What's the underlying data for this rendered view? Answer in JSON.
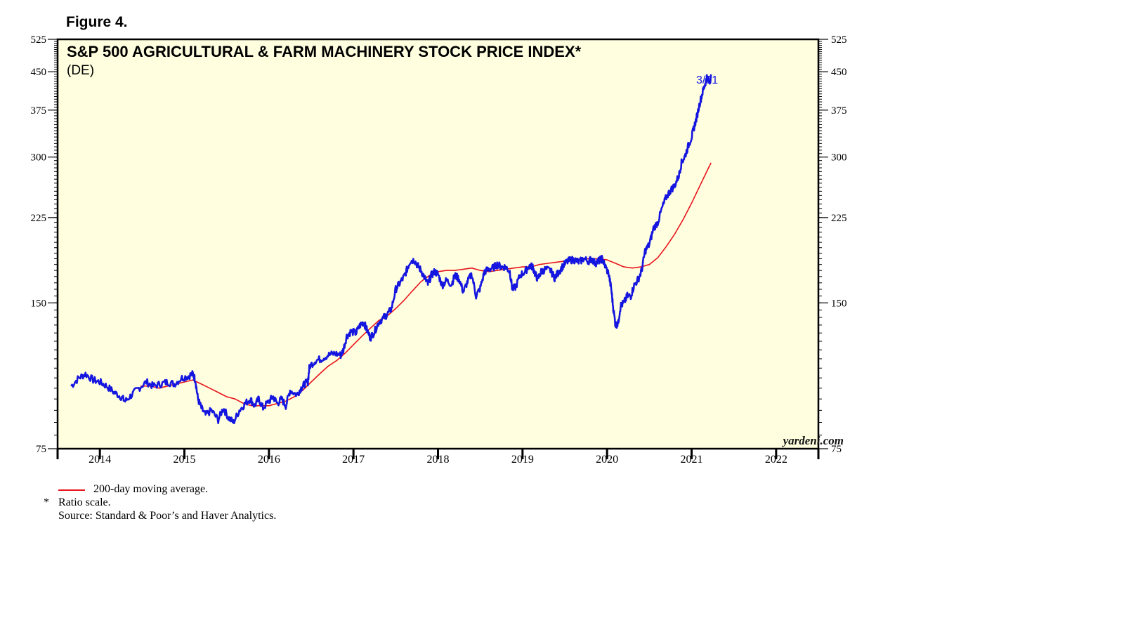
{
  "figure_label": "Figure 4.",
  "footnotes": {
    "legend_ma": "200-day moving average.",
    "asterisk": "*",
    "ratio_note": "Ratio scale.",
    "source": "Source: Standard & Poor’s and Haver Analytics."
  },
  "colors": {
    "price": "#1515e0",
    "moving_average": "#e8131c",
    "plot_background": "#ffffe0"
  },
  "chart_data": {
    "type": "line",
    "title": "S&P 500 AGRICULTURAL & FARM MACHINERY STOCK PRICE INDEX*",
    "subtitle": "(DE)",
    "y_scale": "log",
    "ylim": [
      75,
      525
    ],
    "y_ticks": [
      75,
      150,
      225,
      300,
      375,
      450,
      525
    ],
    "xlim": [
      2013.5,
      2022.5
    ],
    "x_tick_labels": [
      "2014",
      "2015",
      "2016",
      "2017",
      "2018",
      "2019",
      "2020",
      "2021",
      "2022"
    ],
    "grid": false,
    "end_label": "3/31",
    "watermark": "yardeni.com",
    "series": [
      {
        "name": "S&P 500 Agricultural & Farm Machinery (DE)",
        "color": "#1515e0",
        "points": [
          [
            2013.66,
            101
          ],
          [
            2013.75,
            105
          ],
          [
            2013.83,
            107
          ],
          [
            2013.92,
            104
          ],
          [
            2014.0,
            103
          ],
          [
            2014.08,
            101
          ],
          [
            2014.17,
            98
          ],
          [
            2014.25,
            96
          ],
          [
            2014.3,
            94
          ],
          [
            2014.38,
            97
          ],
          [
            2014.46,
            100
          ],
          [
            2014.55,
            103
          ],
          [
            2014.63,
            101
          ],
          [
            2014.72,
            102
          ],
          [
            2014.8,
            103
          ],
          [
            2014.88,
            102
          ],
          [
            2014.97,
            105
          ],
          [
            2015.05,
            106
          ],
          [
            2015.1,
            107
          ],
          [
            2015.13,
            104
          ],
          [
            2015.16,
            95
          ],
          [
            2015.2,
            91
          ],
          [
            2015.25,
            88
          ],
          [
            2015.32,
            90
          ],
          [
            2015.4,
            86
          ],
          [
            2015.46,
            91
          ],
          [
            2015.52,
            87
          ],
          [
            2015.58,
            85
          ],
          [
            2015.65,
            90
          ],
          [
            2015.72,
            93
          ],
          [
            2015.78,
            95
          ],
          [
            2015.83,
            92
          ],
          [
            2015.88,
            95
          ],
          [
            2015.93,
            91
          ],
          [
            2016.0,
            94
          ],
          [
            2016.05,
            96
          ],
          [
            2016.1,
            93
          ],
          [
            2016.15,
            95
          ],
          [
            2016.2,
            92
          ],
          [
            2016.25,
            99
          ],
          [
            2016.33,
            97
          ],
          [
            2016.38,
            100
          ],
          [
            2016.42,
            102
          ],
          [
            2016.46,
            103
          ],
          [
            2016.48,
            111
          ],
          [
            2016.55,
            114
          ],
          [
            2016.62,
            115
          ],
          [
            2016.7,
            117
          ],
          [
            2016.78,
            118
          ],
          [
            2016.85,
            117
          ],
          [
            2016.88,
            120
          ],
          [
            2016.92,
            128
          ],
          [
            2016.97,
            131
          ],
          [
            2017.03,
            130
          ],
          [
            2017.08,
            135
          ],
          [
            2017.12,
            137
          ],
          [
            2017.15,
            133
          ],
          [
            2017.2,
            127
          ],
          [
            2017.25,
            131
          ],
          [
            2017.3,
            137
          ],
          [
            2017.36,
            140
          ],
          [
            2017.4,
            142
          ],
          [
            2017.45,
            146
          ],
          [
            2017.5,
            160
          ],
          [
            2017.55,
            165
          ],
          [
            2017.6,
            170
          ],
          [
            2017.64,
            177
          ],
          [
            2017.67,
            183
          ],
          [
            2017.72,
            184
          ],
          [
            2017.76,
            179
          ],
          [
            2017.8,
            175
          ],
          [
            2017.85,
            168
          ],
          [
            2017.88,
            164
          ],
          [
            2017.92,
            171
          ],
          [
            2017.96,
            174
          ],
          [
            2018.0,
            172
          ],
          [
            2018.05,
            163
          ],
          [
            2018.1,
            167
          ],
          [
            2018.16,
            164
          ],
          [
            2018.2,
            171
          ],
          [
            2018.25,
            168
          ],
          [
            2018.3,
            158
          ],
          [
            2018.35,
            166
          ],
          [
            2018.4,
            172
          ],
          [
            2018.45,
            155
          ],
          [
            2018.5,
            161
          ],
          [
            2018.55,
            174
          ],
          [
            2018.6,
            176
          ],
          [
            2018.65,
            177
          ],
          [
            2018.7,
            180
          ],
          [
            2018.75,
            178
          ],
          [
            2018.8,
            178
          ],
          [
            2018.85,
            174
          ],
          [
            2018.88,
            160
          ],
          [
            2018.92,
            162
          ],
          [
            2018.97,
            171
          ],
          [
            2019.03,
            174
          ],
          [
            2019.08,
            179
          ],
          [
            2019.12,
            178
          ],
          [
            2019.15,
            172
          ],
          [
            2019.18,
            168
          ],
          [
            2019.22,
            174
          ],
          [
            2019.27,
            176
          ],
          [
            2019.33,
            175
          ],
          [
            2019.38,
            169
          ],
          [
            2019.42,
            173
          ],
          [
            2019.47,
            178
          ],
          [
            2019.52,
            182
          ],
          [
            2019.57,
            184
          ],
          [
            2019.62,
            184
          ],
          [
            2019.67,
            182
          ],
          [
            2019.72,
            185
          ],
          [
            2019.78,
            183
          ],
          [
            2019.82,
            185
          ],
          [
            2019.86,
            181
          ],
          [
            2019.9,
            183
          ],
          [
            2019.94,
            185
          ],
          [
            2019.97,
            180
          ],
          [
            2020.02,
            172
          ],
          [
            2020.05,
            160
          ],
          [
            2020.07,
            148
          ],
          [
            2020.1,
            135
          ],
          [
            2020.13,
            136
          ],
          [
            2020.16,
            148
          ],
          [
            2020.2,
            150
          ],
          [
            2020.24,
            155
          ],
          [
            2020.28,
            155
          ],
          [
            2020.32,
            163
          ],
          [
            2020.37,
            168
          ],
          [
            2020.41,
            175
          ],
          [
            2020.45,
            192
          ],
          [
            2020.5,
            198
          ],
          [
            2020.55,
            214
          ],
          [
            2020.6,
            220
          ],
          [
            2020.65,
            235
          ],
          [
            2020.7,
            248
          ],
          [
            2020.75,
            256
          ],
          [
            2020.8,
            262
          ],
          [
            2020.85,
            275
          ],
          [
            2020.88,
            292
          ],
          [
            2020.92,
            301
          ],
          [
            2020.96,
            316
          ],
          [
            2021.0,
            330
          ],
          [
            2021.03,
            346
          ],
          [
            2021.06,
            362
          ],
          [
            2021.1,
            390
          ],
          [
            2021.13,
            408
          ],
          [
            2021.16,
            425
          ],
          [
            2021.18,
            438
          ],
          [
            2021.21,
            428
          ],
          [
            2021.23,
            440
          ]
        ]
      },
      {
        "name": "200-day moving average",
        "color": "#e8131c",
        "points": [
          [
            2014.48,
            101
          ],
          [
            2014.6,
            101
          ],
          [
            2014.7,
            100
          ],
          [
            2014.8,
            101
          ],
          [
            2014.9,
            102
          ],
          [
            2015.0,
            103
          ],
          [
            2015.1,
            104
          ],
          [
            2015.2,
            102
          ],
          [
            2015.3,
            100
          ],
          [
            2015.4,
            98
          ],
          [
            2015.5,
            96
          ],
          [
            2015.6,
            95
          ],
          [
            2015.7,
            93
          ],
          [
            2015.8,
            92
          ],
          [
            2015.9,
            92
          ],
          [
            2016.0,
            92
          ],
          [
            2016.1,
            93
          ],
          [
            2016.2,
            94
          ],
          [
            2016.3,
            96
          ],
          [
            2016.4,
            99
          ],
          [
            2016.5,
            103
          ],
          [
            2016.6,
            107
          ],
          [
            2016.7,
            111
          ],
          [
            2016.8,
            114
          ],
          [
            2016.9,
            118
          ],
          [
            2017.0,
            123
          ],
          [
            2017.1,
            128
          ],
          [
            2017.2,
            133
          ],
          [
            2017.3,
            138
          ],
          [
            2017.4,
            141
          ],
          [
            2017.5,
            146
          ],
          [
            2017.6,
            152
          ],
          [
            2017.7,
            159
          ],
          [
            2017.8,
            166
          ],
          [
            2017.9,
            171
          ],
          [
            2018.0,
            174
          ],
          [
            2018.1,
            175
          ],
          [
            2018.2,
            175
          ],
          [
            2018.3,
            176
          ],
          [
            2018.4,
            177
          ],
          [
            2018.5,
            175
          ],
          [
            2018.6,
            174
          ],
          [
            2018.7,
            175
          ],
          [
            2018.8,
            176
          ],
          [
            2018.9,
            177
          ],
          [
            2019.0,
            178
          ],
          [
            2019.1,
            178
          ],
          [
            2019.2,
            180
          ],
          [
            2019.3,
            181
          ],
          [
            2019.4,
            182
          ],
          [
            2019.5,
            183
          ],
          [
            2019.6,
            184
          ],
          [
            2019.7,
            185
          ],
          [
            2019.8,
            185
          ],
          [
            2019.9,
            185
          ],
          [
            2020.0,
            184
          ],
          [
            2020.1,
            181
          ],
          [
            2020.2,
            178
          ],
          [
            2020.3,
            177
          ],
          [
            2020.4,
            178
          ],
          [
            2020.5,
            180
          ],
          [
            2020.6,
            186
          ],
          [
            2020.7,
            196
          ],
          [
            2020.8,
            208
          ],
          [
            2020.9,
            223
          ],
          [
            2021.0,
            241
          ],
          [
            2021.1,
            262
          ],
          [
            2021.2,
            285
          ],
          [
            2021.23,
            292
          ]
        ]
      }
    ]
  }
}
